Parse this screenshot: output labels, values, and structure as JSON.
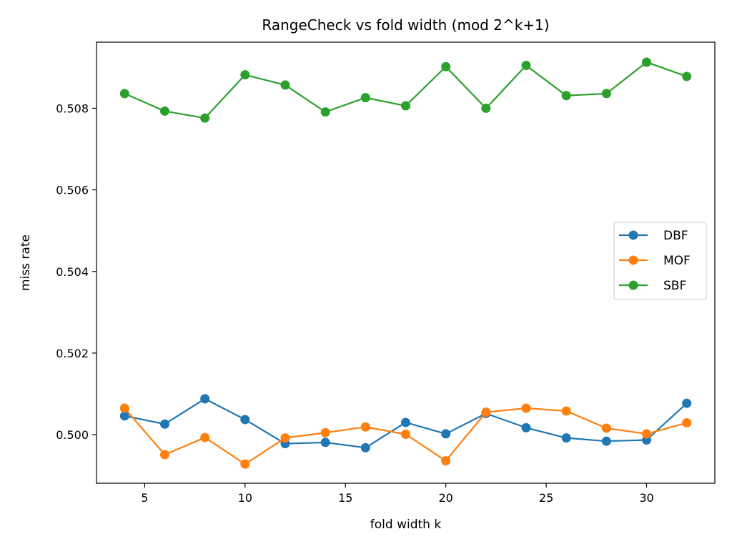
{
  "chart_data": {
    "type": "line",
    "title": "RangeCheck vs fold width (mod 2^k+1)",
    "xlabel": "fold width k",
    "ylabel": "miss rate",
    "x": [
      4,
      6,
      8,
      10,
      12,
      14,
      16,
      18,
      20,
      22,
      24,
      26,
      28,
      30,
      32
    ],
    "xlim": [
      2.6,
      33.4
    ],
    "ylim": [
      0.49881,
      0.50962
    ],
    "xticks": [
      5,
      10,
      15,
      20,
      25,
      30
    ],
    "xtick_labels": [
      "5",
      "10",
      "15",
      "20",
      "25",
      "30"
    ],
    "yticks": [
      0.5,
      0.502,
      0.504,
      0.506,
      0.508
    ],
    "ytick_labels": [
      "0.500",
      "0.502",
      "0.504",
      "0.506",
      "0.508"
    ],
    "grid": false,
    "legend_position": "center-right",
    "series": [
      {
        "name": "DBF",
        "color": "#1f77b4",
        "marker": "circle",
        "values": [
          0.50046,
          0.50026,
          0.50088,
          0.50037,
          0.49978,
          0.49981,
          0.49968,
          0.5003,
          0.50002,
          0.50052,
          0.50017,
          0.49992,
          0.49984,
          0.49987,
          0.50077
        ]
      },
      {
        "name": "MOF",
        "color": "#ff7f0e",
        "marker": "circle",
        "values": [
          0.50065,
          0.49951,
          0.49993,
          0.49928,
          0.49992,
          0.50005,
          0.50019,
          0.50001,
          0.49936,
          0.50055,
          0.50065,
          0.50058,
          0.50016,
          0.50002,
          0.50029
        ]
      },
      {
        "name": "SBF",
        "color": "#2ca02c",
        "marker": "circle",
        "values": [
          0.50836,
          0.50793,
          0.50776,
          0.50882,
          0.50857,
          0.50791,
          0.50826,
          0.50806,
          0.50902,
          0.508,
          0.50905,
          0.50831,
          0.50836,
          0.50913,
          0.50878
        ]
      }
    ]
  }
}
